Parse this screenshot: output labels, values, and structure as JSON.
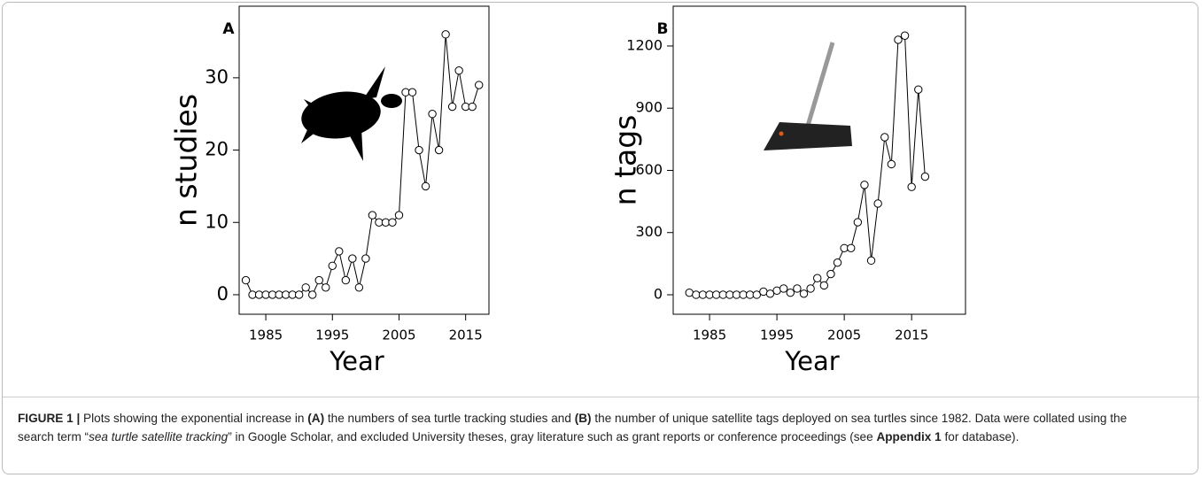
{
  "charts": [
    {
      "type": "line",
      "title": "A",
      "x_label": "Year",
      "y_label": "n studies",
      "color": "#000000",
      "x": [
        1982,
        1983,
        1984,
        1985,
        1986,
        1987,
        1988,
        1989,
        1990,
        1991,
        1992,
        1993,
        1994,
        1995,
        1996,
        1997,
        1998,
        1999,
        2000,
        2001,
        2002,
        2003,
        2004,
        2005,
        2006,
        2007,
        2008,
        2009,
        2010,
        2011,
        2012,
        2013,
        2014,
        2015,
        2016,
        2017
      ],
      "values": [
        2,
        0,
        0,
        0,
        0,
        0,
        0,
        0,
        0,
        1,
        0,
        2,
        1,
        4,
        6,
        2,
        5,
        1,
        5,
        11,
        10,
        10,
        10,
        11,
        28,
        28,
        20,
        15,
        25,
        20,
        36,
        26,
        31,
        26,
        26,
        29
      ],
      "xlim": [
        1981,
        2018.5
      ],
      "ylim": [
        -2.7,
        39.9
      ],
      "xticks": [
        1985,
        1995,
        2005,
        2015
      ],
      "yticks": [
        0,
        10,
        20,
        30
      ]
    },
    {
      "type": "line",
      "title": "B",
      "x_label": "Year",
      "y_label": "n tags",
      "color": "#000000",
      "x": [
        1982,
        1983,
        1984,
        1985,
        1986,
        1987,
        1988,
        1989,
        1990,
        1991,
        1992,
        1993,
        1994,
        1995,
        1996,
        1997,
        1998,
        1999,
        2000,
        2001,
        2002,
        2003,
        2004,
        2005,
        2006,
        2007,
        2008,
        2009,
        2010,
        2011,
        2012,
        2013,
        2014,
        2015,
        2016,
        2017
      ],
      "values": [
        10,
        0,
        0,
        0,
        0,
        0,
        0,
        0,
        0,
        0,
        0,
        15,
        5,
        20,
        30,
        10,
        30,
        5,
        30,
        80,
        45,
        100,
        155,
        225,
        225,
        350,
        530,
        165,
        440,
        760,
        630,
        1230,
        1250,
        520,
        990,
        570
      ],
      "xlim": [
        1979.6,
        2023
      ],
      "ylim": [
        -94,
        1392
      ],
      "xticks": [
        1985,
        1995,
        2005,
        2015
      ],
      "yticks": [
        0,
        300,
        600,
        900,
        1200
      ]
    }
  ],
  "caption": {
    "parts": [
      "FIGURE 1 |",
      " Plots showing the exponential increase in ",
      "(A)",
      " the numbers of sea turtle tracking studies and ",
      "(B)",
      " the number of unique satellite tags deployed on sea turtles since 1982. Data were collated using the search term “",
      "sea turtle satellite tracking",
      "” in Google Scholar, and excluded University theses, gray literature such as grant reports or conference proceedings (see ",
      "Appendix 1",
      " for database)."
    ]
  }
}
